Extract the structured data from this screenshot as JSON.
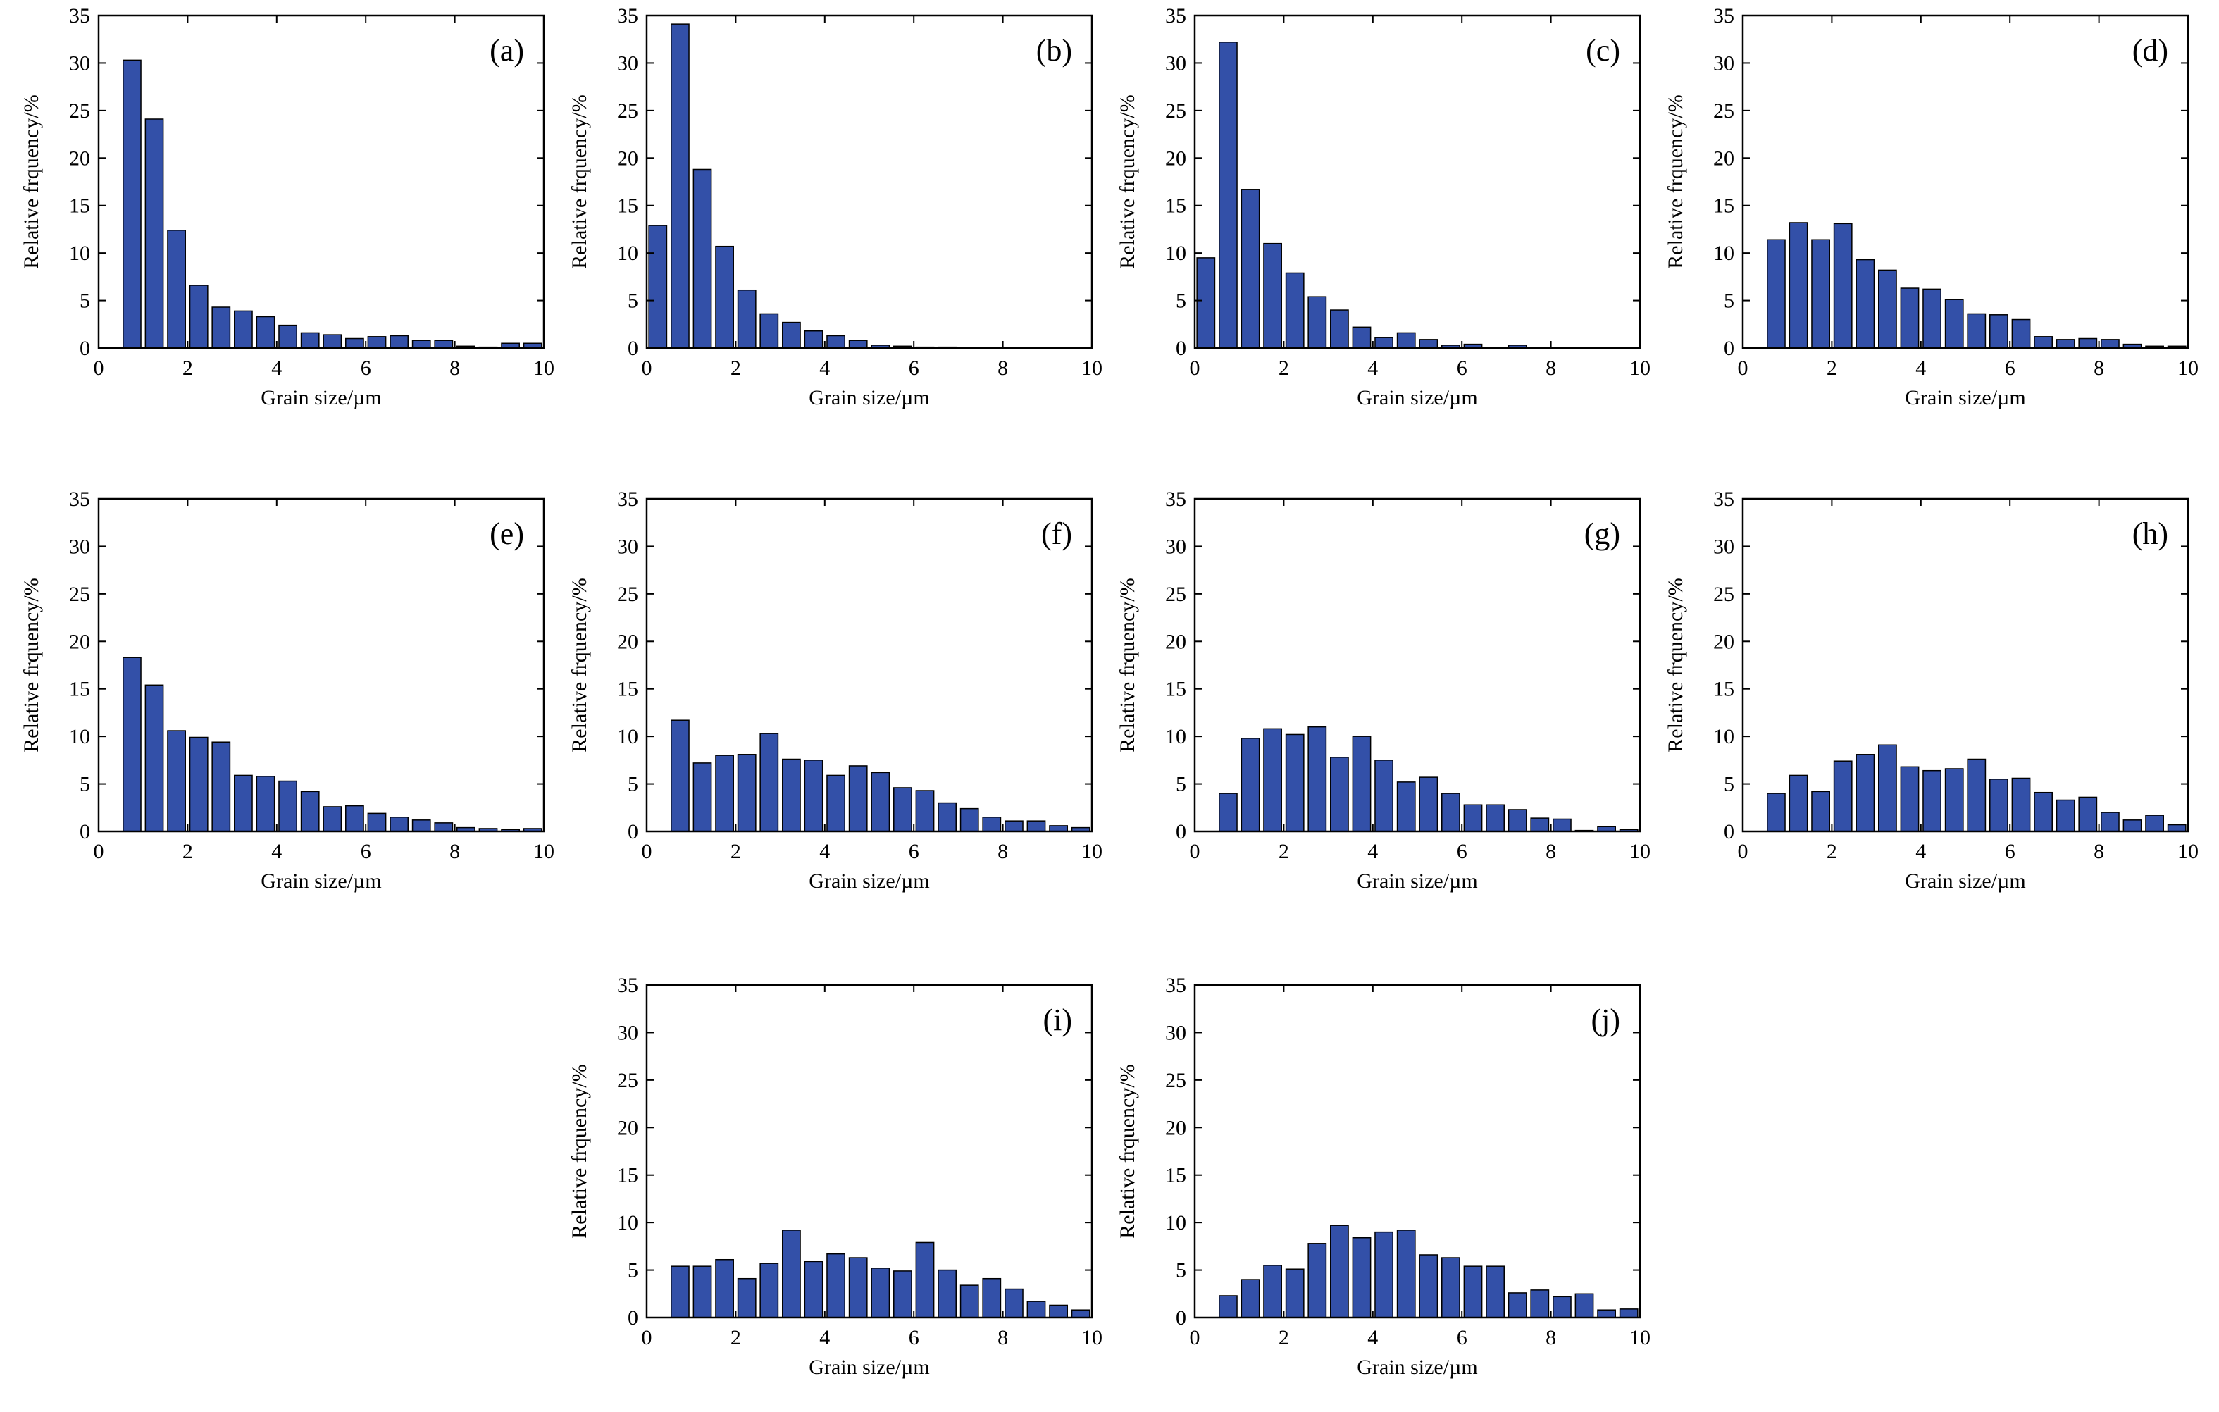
{
  "style": {
    "bar_color": "#3350A8",
    "bar_edge": "#000000",
    "axis_color": "#000000"
  },
  "chart_data": [
    {
      "label": "(a)",
      "type": "bar",
      "xlabel": "Grain size/µm",
      "ylabel": "Relative frquency/%",
      "xlim": [
        0,
        10
      ],
      "ylim": [
        0,
        35
      ],
      "xticks": [
        0,
        2,
        4,
        6,
        8,
        10
      ],
      "yticks": [
        0,
        5,
        10,
        15,
        20,
        25,
        30,
        35
      ],
      "x": [
        0.75,
        1.25,
        1.75,
        2.25,
        2.75,
        3.25,
        3.75,
        4.25,
        4.75,
        5.25,
        5.75,
        6.25,
        6.75,
        7.25,
        7.75,
        8.25,
        8.75,
        9.25,
        9.75
      ],
      "values": [
        30.3,
        24.1,
        12.4,
        6.6,
        4.3,
        3.9,
        3.3,
        2.4,
        1.6,
        1.4,
        1.0,
        1.2,
        1.3,
        0.8,
        0.8,
        0.2,
        0.1,
        0.5,
        0.5
      ]
    },
    {
      "label": "(b)",
      "type": "bar",
      "xlabel": "Grain size/µm",
      "ylabel": "Relative frquency/%",
      "xlim": [
        0,
        10
      ],
      "ylim": [
        0,
        35
      ],
      "xticks": [
        0,
        2,
        4,
        6,
        8,
        10
      ],
      "yticks": [
        0,
        5,
        10,
        15,
        20,
        25,
        30,
        35
      ],
      "x": [
        0.25,
        0.75,
        1.25,
        1.75,
        2.25,
        2.75,
        3.25,
        3.75,
        4.25,
        4.75,
        5.25,
        5.75,
        6.25,
        6.75,
        7.25,
        7.75,
        8.25,
        8.75,
        9.25,
        9.75
      ],
      "values": [
        12.9,
        34.1,
        18.8,
        10.7,
        6.1,
        3.6,
        2.7,
        1.8,
        1.3,
        0.8,
        0.3,
        0.2,
        0.1,
        0.1,
        0.05,
        0.05,
        0.05,
        0.05,
        0.05,
        0.05
      ]
    },
    {
      "label": "(c)",
      "type": "bar",
      "xlabel": "Grain size/µm",
      "ylabel": "Relative frquency/%",
      "xlim": [
        0,
        10
      ],
      "ylim": [
        0,
        35
      ],
      "xticks": [
        0,
        2,
        4,
        6,
        8,
        10
      ],
      "yticks": [
        0,
        5,
        10,
        15,
        20,
        25,
        30,
        35
      ],
      "x": [
        0.25,
        0.75,
        1.25,
        1.75,
        2.25,
        2.75,
        3.25,
        3.75,
        4.25,
        4.75,
        5.25,
        5.75,
        6.25,
        6.75,
        7.25,
        7.75,
        8.25,
        8.75,
        9.25,
        9.75
      ],
      "values": [
        9.5,
        32.2,
        16.7,
        11.0,
        7.9,
        5.4,
        4.0,
        2.2,
        1.1,
        1.6,
        0.9,
        0.3,
        0.4,
        0.05,
        0.3,
        0.05,
        0.05,
        0.05,
        0.05,
        0.05
      ]
    },
    {
      "label": "(d)",
      "type": "bar",
      "xlabel": "Grain size/µm",
      "ylabel": "Relative frquency/%",
      "xlim": [
        0,
        10
      ],
      "ylim": [
        0,
        35
      ],
      "xticks": [
        0,
        2,
        4,
        6,
        8,
        10
      ],
      "yticks": [
        0,
        5,
        10,
        15,
        20,
        25,
        30,
        35
      ],
      "x": [
        0.75,
        1.25,
        1.75,
        2.25,
        2.75,
        3.25,
        3.75,
        4.25,
        4.75,
        5.25,
        5.75,
        6.25,
        6.75,
        7.25,
        7.75,
        8.25,
        8.75,
        9.25,
        9.75
      ],
      "values": [
        11.4,
        13.2,
        11.4,
        13.1,
        9.3,
        8.2,
        6.3,
        6.2,
        5.1,
        3.6,
        3.5,
        3.0,
        1.2,
        0.9,
        1.0,
        0.9,
        0.4,
        0.2,
        0.2
      ]
    },
    {
      "label": "(e)",
      "type": "bar",
      "xlabel": "Grain size/µm",
      "ylabel": "Relative frquency/%",
      "xlim": [
        0,
        10
      ],
      "ylim": [
        0,
        35
      ],
      "xticks": [
        0,
        2,
        4,
        6,
        8,
        10
      ],
      "yticks": [
        0,
        5,
        10,
        15,
        20,
        25,
        30,
        35
      ],
      "x": [
        0.75,
        1.25,
        1.75,
        2.25,
        2.75,
        3.25,
        3.75,
        4.25,
        4.75,
        5.25,
        5.75,
        6.25,
        6.75,
        7.25,
        7.75,
        8.25,
        8.75,
        9.25,
        9.75
      ],
      "values": [
        18.3,
        15.4,
        10.6,
        9.9,
        9.4,
        5.9,
        5.8,
        5.3,
        4.2,
        2.6,
        2.7,
        1.9,
        1.5,
        1.2,
        0.9,
        0.4,
        0.3,
        0.2,
        0.3
      ]
    },
    {
      "label": "(f)",
      "type": "bar",
      "xlabel": "Grain size/µm",
      "ylabel": "Relative frquency/%",
      "xlim": [
        0,
        10
      ],
      "ylim": [
        0,
        35
      ],
      "xticks": [
        0,
        2,
        4,
        6,
        8,
        10
      ],
      "yticks": [
        0,
        5,
        10,
        15,
        20,
        25,
        30,
        35
      ],
      "x": [
        0.75,
        1.25,
        1.75,
        2.25,
        2.75,
        3.25,
        3.75,
        4.25,
        4.75,
        5.25,
        5.75,
        6.25,
        6.75,
        7.25,
        7.75,
        8.25,
        8.75,
        9.25,
        9.75
      ],
      "values": [
        11.7,
        7.2,
        8.0,
        8.1,
        10.3,
        7.6,
        7.5,
        5.9,
        6.9,
        6.2,
        4.6,
        4.3,
        3.0,
        2.4,
        1.5,
        1.1,
        1.1,
        0.6,
        0.4
      ]
    },
    {
      "label": "(g)",
      "type": "bar",
      "xlabel": "Grain size/µm",
      "ylabel": "Relative frquency/%",
      "xlim": [
        0,
        10
      ],
      "ylim": [
        0,
        35
      ],
      "xticks": [
        0,
        2,
        4,
        6,
        8,
        10
      ],
      "yticks": [
        0,
        5,
        10,
        15,
        20,
        25,
        30,
        35
      ],
      "x": [
        0.75,
        1.25,
        1.75,
        2.25,
        2.75,
        3.25,
        3.75,
        4.25,
        4.75,
        5.25,
        5.75,
        6.25,
        6.75,
        7.25,
        7.75,
        8.25,
        8.75,
        9.25,
        9.75
      ],
      "values": [
        4.0,
        9.8,
        10.8,
        10.2,
        11.0,
        7.8,
        10.0,
        7.5,
        5.2,
        5.7,
        4.0,
        2.8,
        2.8,
        2.3,
        1.4,
        1.3,
        0.1,
        0.5,
        0.2
      ]
    },
    {
      "label": "(h)",
      "type": "bar",
      "xlabel": "Grain size/µm",
      "ylabel": "Relative frquency/%",
      "xlim": [
        0,
        10
      ],
      "ylim": [
        0,
        35
      ],
      "xticks": [
        0,
        2,
        4,
        6,
        8,
        10
      ],
      "yticks": [
        0,
        5,
        10,
        15,
        20,
        25,
        30,
        35
      ],
      "x": [
        0.75,
        1.25,
        1.75,
        2.25,
        2.75,
        3.25,
        3.75,
        4.25,
        4.75,
        5.25,
        5.75,
        6.25,
        6.75,
        7.25,
        7.75,
        8.25,
        8.75,
        9.25,
        9.75
      ],
      "values": [
        4.0,
        5.9,
        4.2,
        7.4,
        8.1,
        9.1,
        6.8,
        6.4,
        6.6,
        7.6,
        5.5,
        5.6,
        4.1,
        3.3,
        3.6,
        2.0,
        1.2,
        1.7,
        0.7
      ]
    },
    {
      "label": "(i)",
      "type": "bar",
      "xlabel": "Grain size/µm",
      "ylabel": "Relative frquency/%",
      "xlim": [
        0,
        10
      ],
      "ylim": [
        0,
        35
      ],
      "xticks": [
        0,
        2,
        4,
        6,
        8,
        10
      ],
      "yticks": [
        0,
        5,
        10,
        15,
        20,
        25,
        30,
        35
      ],
      "x": [
        0.75,
        1.25,
        1.75,
        2.25,
        2.75,
        3.25,
        3.75,
        4.25,
        4.75,
        5.25,
        5.75,
        6.25,
        6.75,
        7.25,
        7.75,
        8.25,
        8.75,
        9.25,
        9.75
      ],
      "values": [
        5.4,
        5.4,
        6.1,
        4.1,
        5.7,
        9.2,
        5.9,
        6.7,
        6.3,
        5.2,
        4.9,
        7.9,
        5.0,
        3.4,
        4.1,
        3.0,
        1.7,
        1.3,
        0.8
      ]
    },
    {
      "label": "(j)",
      "type": "bar",
      "xlabel": "Grain size/µm",
      "ylabel": "Relative frquency/%",
      "xlim": [
        0,
        10
      ],
      "ylim": [
        0,
        35
      ],
      "xticks": [
        0,
        2,
        4,
        6,
        8,
        10
      ],
      "yticks": [
        0,
        5,
        10,
        15,
        20,
        25,
        30,
        35
      ],
      "x": [
        0.75,
        1.25,
        1.75,
        2.25,
        2.75,
        3.25,
        3.75,
        4.25,
        4.75,
        5.25,
        5.75,
        6.25,
        6.75,
        7.25,
        7.75,
        8.25,
        8.75,
        9.25,
        9.75
      ],
      "values": [
        2.3,
        4.0,
        5.5,
        5.1,
        7.8,
        9.7,
        8.4,
        9.0,
        9.2,
        6.6,
        6.3,
        5.4,
        5.4,
        2.6,
        2.9,
        2.2,
        2.5,
        0.8,
        0.9
      ]
    }
  ]
}
